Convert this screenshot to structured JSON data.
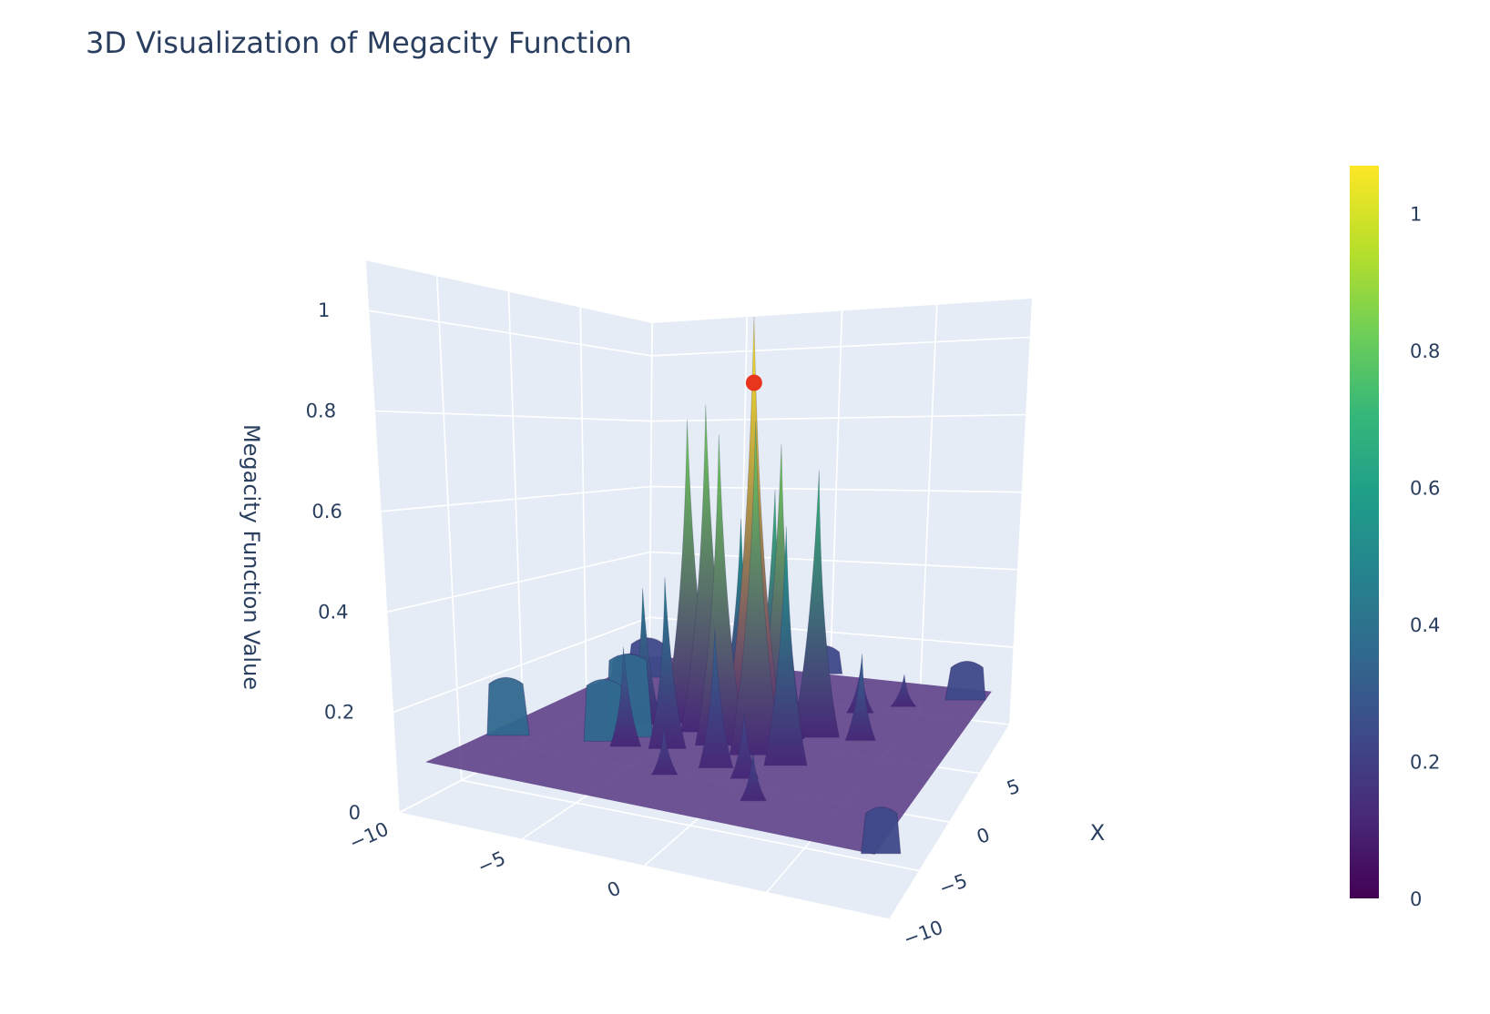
{
  "chart_data": {
    "type": "surface",
    "title": "3D Visualization of Megacity Function",
    "xlabel": "X",
    "ylabel": "",
    "zlabel": "Megacity Function Value",
    "x_ticks": [
      "−10",
      "−5",
      "0",
      "5"
    ],
    "y_ticks": [
      "−10",
      "−5",
      "0"
    ],
    "z_ticks": [
      "0",
      "0.2",
      "0.4",
      "0.6",
      "0.8",
      "1"
    ],
    "xlim": [
      -10,
      10
    ],
    "ylim": [
      -10,
      10
    ],
    "zlim": [
      0,
      1.1
    ],
    "base_level": 0.1,
    "colorscale": "Viridis",
    "colorbar": {
      "min": 0,
      "max": 1.07,
      "ticks": [
        "0",
        "0.2",
        "0.4",
        "0.6",
        "0.8",
        "1"
      ]
    },
    "colors": [
      "#440154",
      "#482878",
      "#3e4989",
      "#31688e",
      "#26828e",
      "#1f9e89",
      "#35b779",
      "#6ece58",
      "#b5de2b",
      "#fde725"
    ],
    "peaks": [
      {
        "x": 0.0,
        "y": 0.8,
        "z": 1.07
      },
      {
        "x": 0.5,
        "y": -1.6,
        "z": 0.86
      },
      {
        "x": -1.2,
        "y": 1.4,
        "z": 0.84
      },
      {
        "x": 1.2,
        "y": -2.8,
        "z": 0.82
      },
      {
        "x": -0.8,
        "y": -0.4,
        "z": 0.8
      },
      {
        "x": 1.0,
        "y": 1.6,
        "z": 0.78
      },
      {
        "x": 1.8,
        "y": 3.0,
        "z": 0.72
      },
      {
        "x": 2.6,
        "y": 0.6,
        "z": 0.66
      },
      {
        "x": -1.8,
        "y": 3.0,
        "z": 0.62
      },
      {
        "x": 3.0,
        "y": -1.2,
        "z": 0.58
      },
      {
        "x": -2.2,
        "y": -2.2,
        "z": 0.48
      },
      {
        "x": 0.2,
        "y": -4.4,
        "z": 0.42
      },
      {
        "x": -3.4,
        "y": 0.5,
        "z": 0.4
      },
      {
        "x": -2.8,
        "y": -3.8,
        "z": 0.32
      },
      {
        "x": 2.2,
        "y": 5.0,
        "z": 0.3
      },
      {
        "x": 3.6,
        "y": 2.5,
        "z": 0.28
      },
      {
        "x": 4.5,
        "y": 0.0,
        "z": 0.26
      },
      {
        "x": -4.0,
        "y": 2.0,
        "z": 0.24
      },
      {
        "x": 5.2,
        "y": 3.8,
        "z": 0.22
      },
      {
        "x": -5.2,
        "y": -1.0,
        "z": 0.2
      },
      {
        "x": 2.4,
        "y": -4.5,
        "z": 0.22
      },
      {
        "x": -6.2,
        "y": 3.2,
        "z": 0.2
      },
      {
        "x": 6.5,
        "y": 5.5,
        "z": 0.18
      }
    ],
    "plateaus": [
      {
        "x": -4.0,
        "y": -8.4,
        "z": 0.23
      },
      {
        "x": -1.6,
        "y": -4.2,
        "z": 0.29
      },
      {
        "x": -2.6,
        "y": -4.8,
        "z": 0.24
      },
      {
        "x": 4.0,
        "y": -7.2,
        "z": 0.2
      },
      {
        "x": 6.2,
        "y": -7.6,
        "z": 0.21
      },
      {
        "x": 8.0,
        "y": 8.2,
        "z": 0.2
      },
      {
        "x": -9.0,
        "y": 9.4,
        "z": 0.19
      },
      {
        "x": 9.2,
        "y": 0.0,
        "z": 0.18
      }
    ],
    "marker": {
      "x": 0.0,
      "y": 0.8,
      "z": 0.92,
      "color": "#e8351e"
    }
  }
}
